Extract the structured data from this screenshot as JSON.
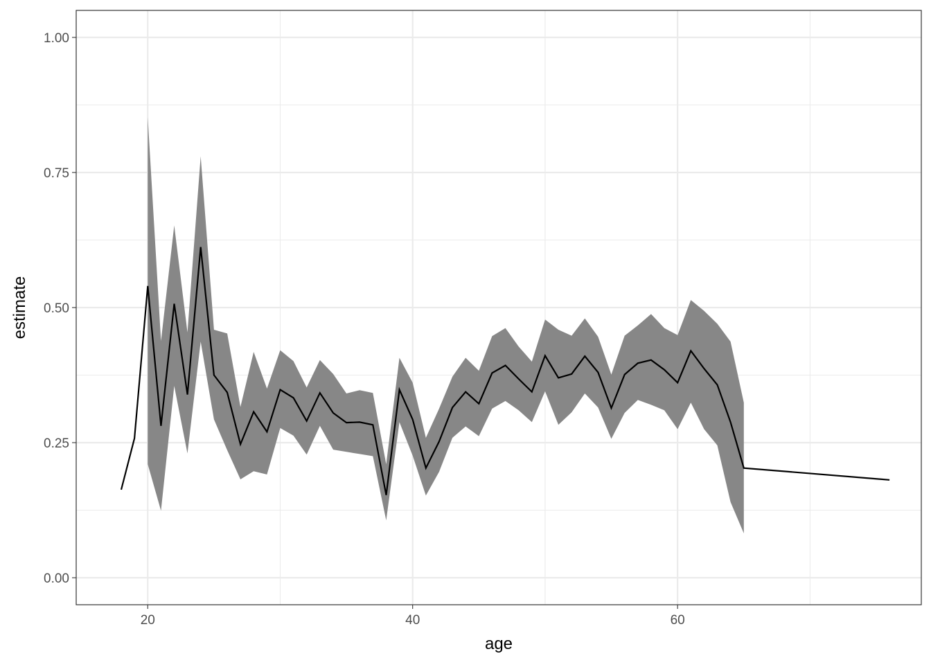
{
  "chart_data": {
    "type": "line",
    "xlabel": "age",
    "ylabel": "estimate",
    "xlim": [
      14.6,
      78.4
    ],
    "ylim": [
      -0.05,
      1.05
    ],
    "x_ticks": [
      20,
      40,
      60
    ],
    "x_tick_labels": [
      "20",
      "40",
      "60"
    ],
    "y_ticks": [
      0,
      0.25,
      0.5,
      0.75,
      1.0
    ],
    "y_tick_labels": [
      "0.00",
      "0.25",
      "0.50",
      "0.75",
      "1.00"
    ],
    "grid": true,
    "colors": {
      "line": "#000000",
      "ribbon": "#878787",
      "grid": "#ebebeb",
      "panel_border": "#333333"
    },
    "series": [
      {
        "x": [
          18,
          19,
          20,
          21,
          22,
          23,
          24,
          25,
          26,
          27,
          28,
          29,
          30,
          31,
          32,
          33,
          34,
          35,
          36,
          37,
          38,
          39,
          40,
          41,
          42,
          43,
          44,
          45,
          46,
          47,
          48,
          49,
          50,
          51,
          52,
          53,
          54,
          55,
          56,
          57,
          58,
          59,
          60,
          61,
          62,
          63,
          64,
          65,
          76
        ],
        "estimate": [
          0.163,
          0.258,
          0.54,
          0.281,
          0.507,
          0.339,
          0.612,
          0.375,
          0.343,
          0.247,
          0.307,
          0.27,
          0.348,
          0.333,
          0.29,
          0.342,
          0.305,
          0.287,
          0.288,
          0.283,
          0.153,
          0.348,
          0.293,
          0.203,
          0.252,
          0.315,
          0.344,
          0.322,
          0.379,
          0.393,
          0.368,
          0.344,
          0.411,
          0.37,
          0.377,
          0.41,
          0.38,
          0.314,
          0.376,
          0.397,
          0.403,
          0.385,
          0.361,
          0.42,
          0.387,
          0.357,
          0.288,
          0.203,
          0.181
        ],
        "lower": [
          null,
          null,
          0.21,
          0.124,
          0.355,
          0.23,
          0.437,
          0.293,
          0.236,
          0.182,
          0.197,
          0.191,
          0.277,
          0.263,
          0.228,
          0.281,
          0.237,
          0.233,
          0.229,
          0.225,
          0.106,
          0.288,
          0.226,
          0.152,
          0.196,
          0.259,
          0.28,
          0.262,
          0.313,
          0.327,
          0.31,
          0.288,
          0.345,
          0.283,
          0.306,
          0.341,
          0.315,
          0.257,
          0.305,
          0.329,
          0.32,
          0.31,
          0.275,
          0.324,
          0.275,
          0.245,
          0.14,
          0.082,
          null
        ],
        "upper": [
          null,
          null,
          0.852,
          0.438,
          0.652,
          0.454,
          0.78,
          0.459,
          0.452,
          0.316,
          0.418,
          0.35,
          0.421,
          0.401,
          0.352,
          0.403,
          0.377,
          0.341,
          0.347,
          0.342,
          0.21,
          0.407,
          0.361,
          0.259,
          0.313,
          0.372,
          0.407,
          0.383,
          0.447,
          0.462,
          0.428,
          0.4,
          0.478,
          0.459,
          0.448,
          0.48,
          0.446,
          0.376,
          0.448,
          0.467,
          0.488,
          0.462,
          0.449,
          0.514,
          0.494,
          0.47,
          0.437,
          0.324,
          null
        ]
      }
    ]
  }
}
